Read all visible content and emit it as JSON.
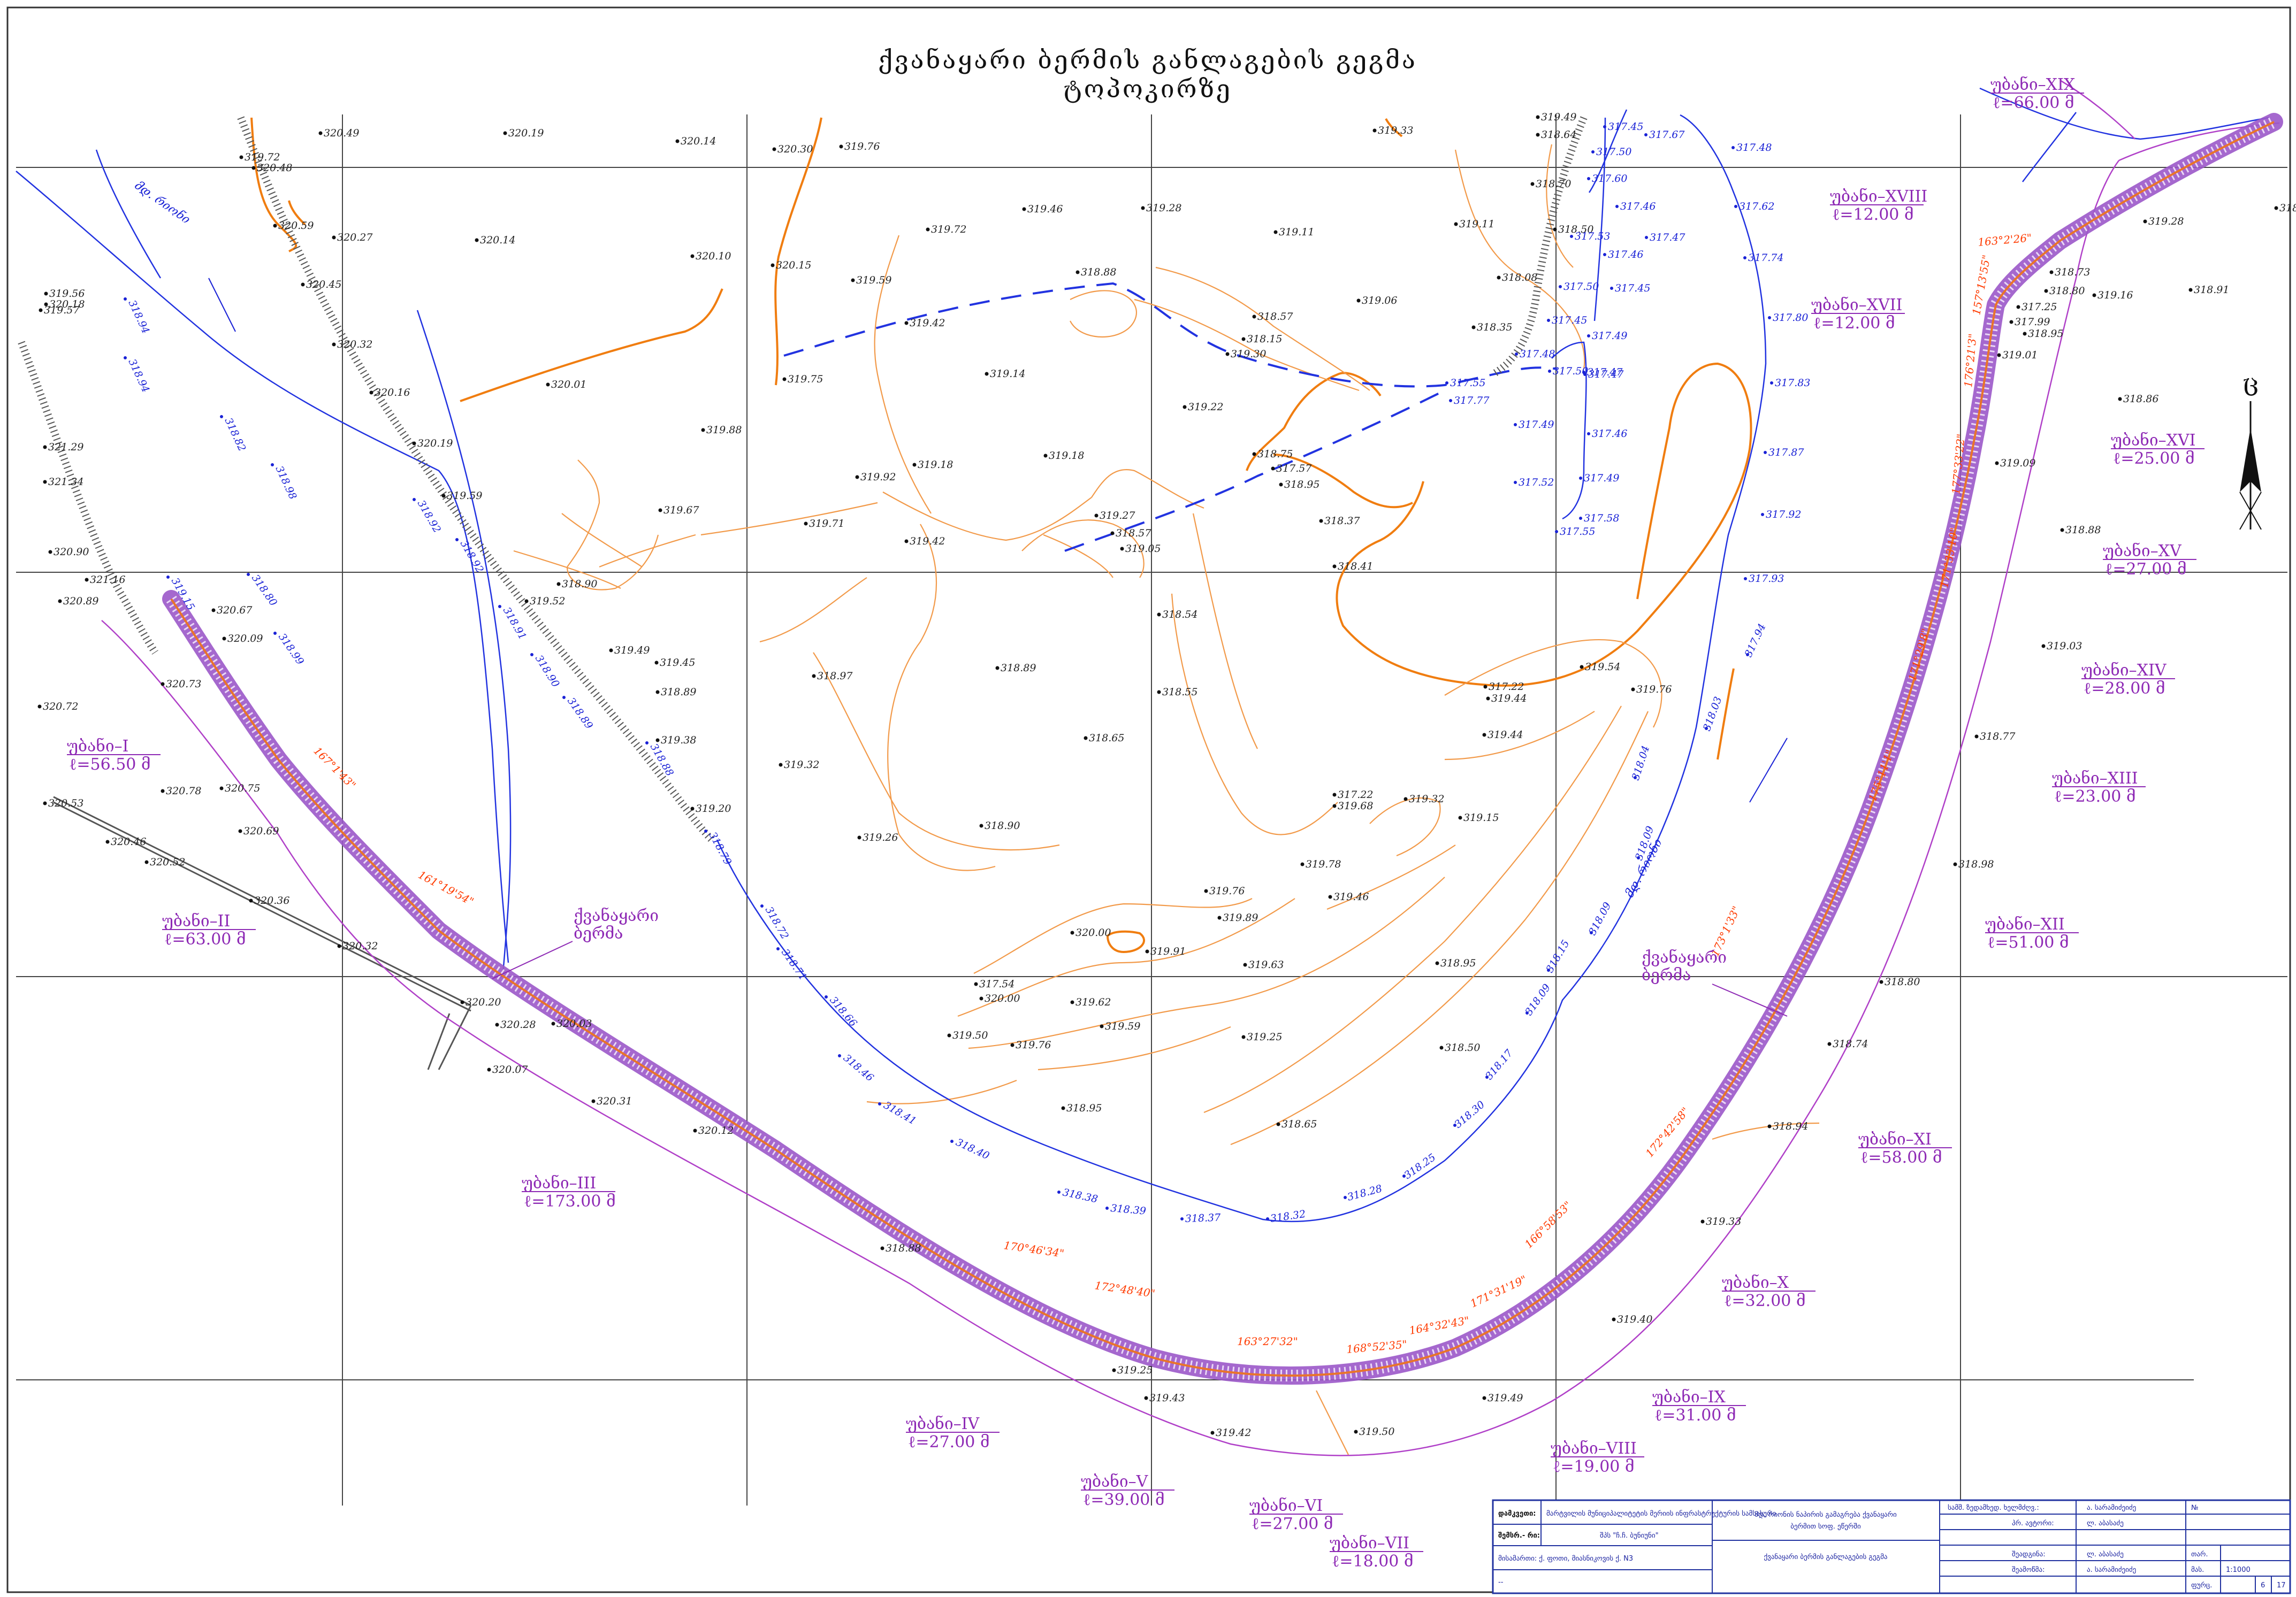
{
  "title": {
    "line1": "ქვანაყარი ბერმის განლაგების გეგმა",
    "line2": "ტოპოკირზე"
  },
  "north_arrow": "ც",
  "river_labels": [
    {
      "text": "მდ. რიონი"
    },
    {
      "text": "მდ. რიონი"
    }
  ],
  "spot_heights": [
    "320.49",
    "320.19",
    "320.14",
    "320.30",
    "319.76",
    "319.33",
    "319.49",
    "318.64",
    "319.72",
    "320.48",
    "320.59",
    "320.27",
    "320.14",
    "320.10",
    "320.15",
    "319.72",
    "319.46",
    "319.28",
    "319.11",
    "319.11",
    "318.70",
    "318.50",
    "319.56",
    "320.18",
    "319.57",
    "320.45",
    "320.32",
    "319.59",
    "319.42",
    "318.88",
    "318.57",
    "318.15",
    "319.30",
    "319.06",
    "318.35",
    "318.08",
    "320.16",
    "320.01",
    "319.75",
    "319.14",
    "319.22",
    "319.88",
    "320.19",
    "319.18",
    "319.18",
    "318.75",
    "317.57",
    "318.95",
    "321.29",
    "321.34",
    "319.92",
    "319.59",
    "319.67",
    "319.71",
    "319.27",
    "318.57",
    "319.05",
    "318.37",
    "318.41",
    "320.90",
    "321.16",
    "320.89",
    "318.90",
    "319.52",
    "319.42",
    "318.54",
    "319.49",
    "319.45",
    "318.89",
    "319.54",
    "319.76",
    "317.22",
    "319.44",
    "320.73",
    "320.72",
    "319.38",
    "318.97",
    "318.65",
    "318.89",
    "319.44",
    "320.75",
    "320.78",
    "319.32",
    "319.20",
    "317.22",
    "319.68",
    "319.32",
    "319.15",
    "320.53",
    "320.69",
    "318.55",
    "319.26",
    "318.90",
    "319.78",
    "319.46",
    "320.46",
    "320.52",
    "319.76",
    "319.89",
    "320.36",
    "320.00",
    "319.91",
    "319.63",
    "318.95",
    "320.32",
    "317.54",
    "320.00",
    "319.62",
    "319.59",
    "319.25",
    "318.50",
    "320.07",
    "319.50",
    "319.76",
    "320.31",
    "318.95",
    "318.65",
    "320.12",
    "318.88",
    "319.25",
    "319.43",
    "319.42",
    "319.50",
    "319.49",
    "319.40",
    "319.33",
    "318.94",
    "318.74",
    "318.80",
    "318.98",
    "318.77",
    "319.03",
    "318.88",
    "319.09",
    "318.86",
    "318.95",
    "319.01",
    "317.99",
    "318.73",
    "318.80",
    "319.16",
    "319.28",
    "317.25",
    "318.91",
    "318.77",
    "320.20",
    "320.28",
    "320.03",
    "320.67",
    "320.09"
  ],
  "water_levels": [
    "317.45",
    "317.67",
    "317.50",
    "317.48",
    "317.60",
    "317.46",
    "317.62",
    "317.53",
    "317.47",
    "317.46",
    "317.74",
    "317.50",
    "317.45",
    "317.45",
    "317.49",
    "317.80",
    "317.47",
    "317.48",
    "317.55",
    "317.77",
    "317.50",
    "317.47",
    "317.83",
    "317.49",
    "317.46",
    "317.87",
    "317.52",
    "317.49",
    "317.58",
    "317.55",
    "317.92",
    "317.93",
    "317.94",
    "318.03",
    "318.04",
    "318.09",
    "318.09",
    "318.15",
    "318.09",
    "318.17",
    "318.30",
    "318.25",
    "318.28",
    "318.32",
    "318.37",
    "318.39",
    "318.38",
    "318.40",
    "318.41",
    "318.46",
    "318.66",
    "318.71",
    "318.72",
    "318.79",
    "318.88",
    "318.89",
    "318.90",
    "318.91",
    "318.92",
    "318.92",
    "318.94",
    "318.94",
    "318.82",
    "318.98",
    "318.80",
    "318.99",
    "319.15"
  ],
  "angles": [
    "167°1'43\"",
    "161°19'54\"",
    "170°46'34\"",
    "172°48'40\"",
    "163°27'32\"",
    "168°52'35\"",
    "164°32'43\"",
    "171°31'19\"",
    "166°58'53\"",
    "172°42'58\"",
    "173°1'33\"",
    "175°11'1\"",
    "171°29'8\"",
    "171°33'10\"",
    "177°33'22\"",
    "176°21'3\"",
    "157°13'55\"",
    "163°2'26\""
  ],
  "sections": [
    {
      "name": "უბანი–I",
      "length": "ℓ=56.50 მ"
    },
    {
      "name": "უბანი–II",
      "length": "ℓ=63.00 მ"
    },
    {
      "name": "უბანი–III",
      "length": "ℓ=173.00 მ"
    },
    {
      "name": "უბანი–IV",
      "length": "ℓ=27.00 მ"
    },
    {
      "name": "უბანი–V",
      "length": "ℓ=39.00 მ"
    },
    {
      "name": "უბანი–VI",
      "length": "ℓ=27.00 მ"
    },
    {
      "name": "უბანი–VII",
      "length": "ℓ=18.00 მ"
    },
    {
      "name": "უბანი–VIII",
      "length": "ℓ=19.00 მ"
    },
    {
      "name": "უბანი–IX",
      "length": "ℓ=31.00 მ"
    },
    {
      "name": "უბანი–X",
      "length": "ℓ=32.00 მ"
    },
    {
      "name": "უბანი–XI",
      "length": "ℓ=58.00 მ"
    },
    {
      "name": "უბანი–XII",
      "length": "ℓ=51.00 მ"
    },
    {
      "name": "უბანი–XIII",
      "length": "ℓ=23.00 მ"
    },
    {
      "name": "უბანი–XIV",
      "length": "ℓ=28.00 მ"
    },
    {
      "name": "უბანი–XV",
      "length": "ℓ=27.00 მ"
    },
    {
      "name": "უბანი–XVI",
      "length": "ℓ=25.00 მ"
    },
    {
      "name": "უბანი–XVII",
      "length": "ℓ=12.00 მ"
    },
    {
      "name": "უბანი–XVIII",
      "length": "ℓ=12.00 მ"
    },
    {
      "name": "უბანი–XIX",
      "length": "ℓ=66.00 მ"
    }
  ],
  "berm_labels": [
    {
      "line1": "ქვანაყარი",
      "line2": "ბერმა"
    },
    {
      "line1": "ქვანაყარი",
      "line2": "ბერმა"
    }
  ],
  "title_block": {
    "c1_head": "დამკვეთი:",
    "c1_text": "მარტვილის მუნიციპალიტეტის მერიის ინფრასტრუქტურის სამსახური",
    "c2_head": "შემსრ.- რი:",
    "c2_text": "შპს \"ჩ.ჩ. ბუნიუნი\"",
    "c3_text": "მისამართი: ქ. ფოთი, მიასნიკოვის ქ. N3",
    "c4_text": "--",
    "project_line1": "მდ. რიონის ნაპირის გამაგრება ქვანაყარი",
    "project_line2": "ბერმით სოფ. ეწერში",
    "sheet_title": "ქვანაყარი ბერმის განლაგების გეგმა",
    "role1": "სამშ. ზედამხედ. ხელმძღვ.:",
    "role2": "პრ. ავტორი:",
    "role3": "შეადგინა:",
    "role4": "შეამოწმა:",
    "name1": "ა. სარამიძეიძე",
    "name2": "ლ. აბასაძე",
    "name3": "ლ. აბასაძე",
    "name4": "ა. სარამიძეიძე",
    "no_label": "№",
    "sheet_word": "თარ.",
    "scale_label": "მას.",
    "scale": "1:1000",
    "sheet_label": "ფურც.",
    "sheet_no": "6",
    "sheet_total": "17"
  }
}
